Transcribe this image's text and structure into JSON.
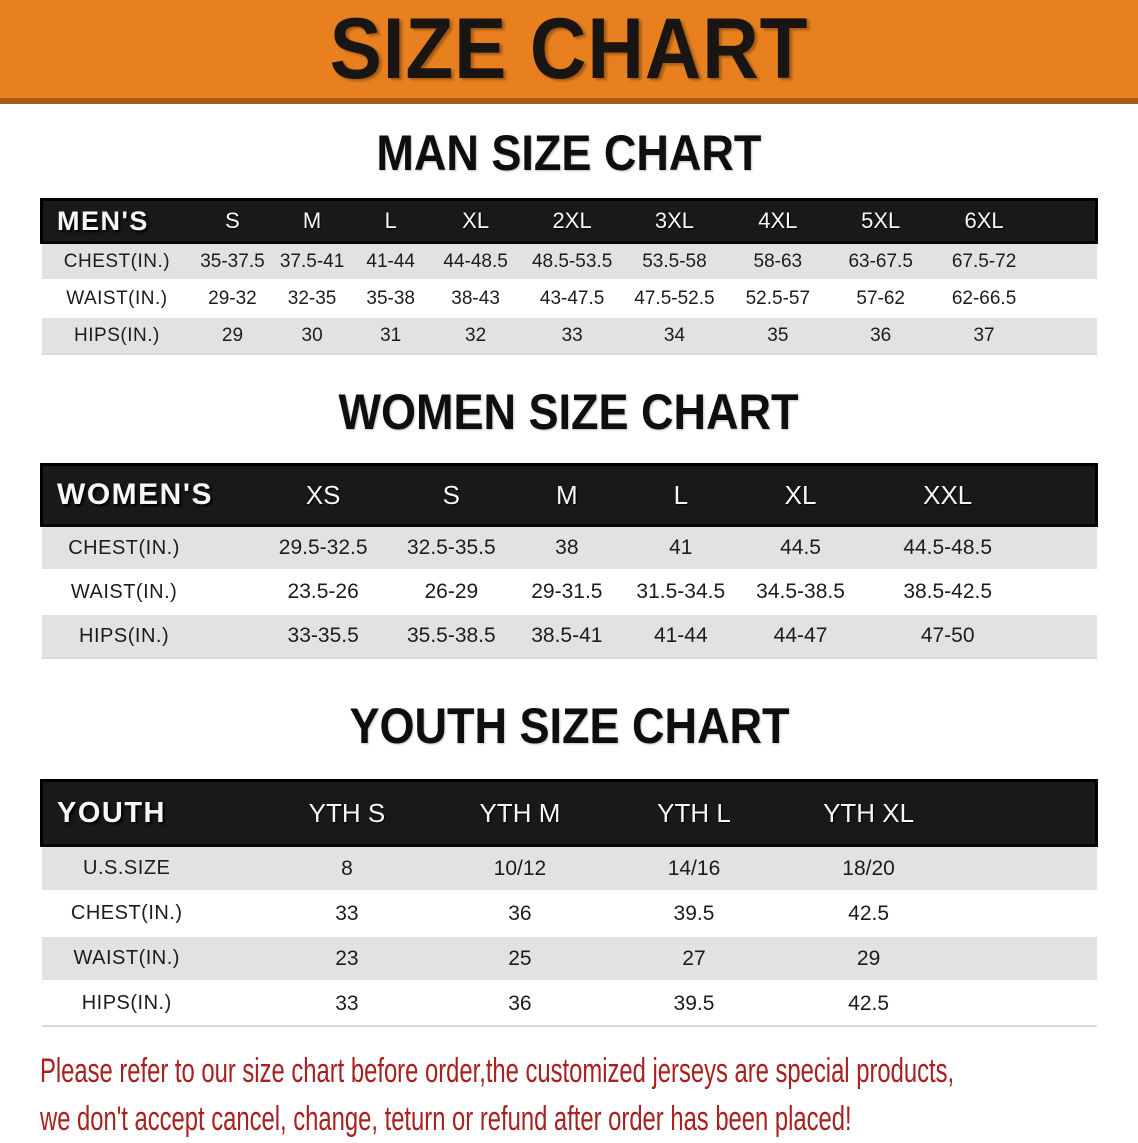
{
  "banner": {
    "title": "SIZE CHART",
    "bg_color": "#E8801F",
    "border_color": "#A85A12",
    "text_color": "#191512"
  },
  "sections": [
    {
      "id": "men",
      "title": "MAN SIZE CHART",
      "header_label": "MEN'S",
      "columns": [
        "S",
        "M",
        "L",
        "XL",
        "2XL",
        "3XL",
        "4XL",
        "5XL",
        "6XL"
      ],
      "rows": [
        {
          "label": "CHEST(IN.)",
          "values": [
            "35-37.5",
            "37.5-41",
            "41-44",
            "44-48.5",
            "48.5-53.5",
            "53.5-58",
            "58-63",
            "63-67.5",
            "67.5-72"
          ]
        },
        {
          "label": "WAIST(IN.)",
          "values": [
            "29-32",
            "32-35",
            "35-38",
            "38-43",
            "43-47.5",
            "47.5-52.5",
            "52.5-57",
            "57-62",
            "62-66.5"
          ]
        },
        {
          "label": "HIPS(IN.)",
          "values": [
            "29",
            "30",
            "31",
            "32",
            "33",
            "34",
            "35",
            "36",
            "37"
          ]
        }
      ]
    },
    {
      "id": "women",
      "title": "WOMEN SIZE CHART",
      "header_label": "WOMEN'S",
      "columns": [
        "XS",
        "S",
        "M",
        "L",
        "XL",
        "XXL"
      ],
      "rows": [
        {
          "label": "CHEST(IN.)",
          "values": [
            "29.5-32.5",
            "32.5-35.5",
            "38",
            "41",
            "44.5",
            "44.5-48.5"
          ]
        },
        {
          "label": "WAIST(IN.)",
          "values": [
            "23.5-26",
            "26-29",
            "29-31.5",
            "31.5-34.5",
            "34.5-38.5",
            "38.5-42.5"
          ]
        },
        {
          "label": "HIPS(IN.)",
          "values": [
            "33-35.5",
            "35.5-38.5",
            "38.5-41",
            "41-44",
            "44-47",
            "47-50"
          ]
        }
      ]
    },
    {
      "id": "youth",
      "title": "YOUTH SIZE CHART",
      "header_label": "YOUTH",
      "columns": [
        "YTH S",
        "YTH M",
        "YTH L",
        "YTH XL"
      ],
      "rows": [
        {
          "label": "U.S.SIZE",
          "values": [
            "8",
            "10/12",
            "14/16",
            "18/20"
          ]
        },
        {
          "label": "CHEST(IN.)",
          "values": [
            "33",
            "36",
            "39.5",
            "42.5"
          ]
        },
        {
          "label": "WAIST(IN.)",
          "values": [
            "23",
            "25",
            "27",
            "29"
          ]
        },
        {
          "label": "HIPS(IN.)",
          "values": [
            "33",
            "36",
            "39.5",
            "42.5"
          ]
        }
      ]
    }
  ],
  "table_style": {
    "header_bg": "#191919",
    "header_text": "#F7F7F5",
    "row_alt_bg": "#E2E2E1",
    "row_bg": "#FFFFFF"
  },
  "footer": {
    "line1": "Please refer to our size chart before order,the customized jerseys are special products,",
    "line2": "we don't accept cancel, change, teturn or refund after order has been placed!",
    "text_color": "#A6211F"
  }
}
